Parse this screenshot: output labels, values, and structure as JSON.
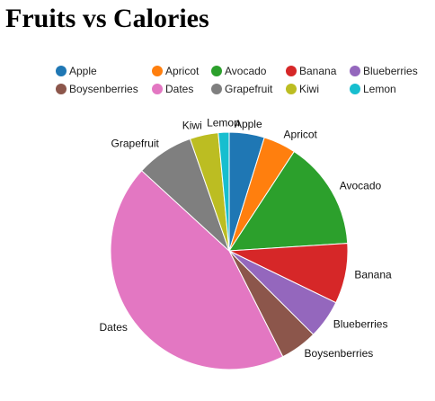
{
  "title": "Fruits vs Calories",
  "chart_data": {
    "type": "pie",
    "title": "Fruits vs Calories",
    "legend_placement": "top",
    "categories": [
      "Apple",
      "Apricot",
      "Avocado",
      "Banana",
      "Blueberries",
      "Boysenberries",
      "Dates",
      "Grapefruit",
      "Kiwi",
      "Lemon"
    ],
    "values": [
      52,
      48,
      160,
      89,
      57,
      55,
      480,
      85,
      42,
      16
    ],
    "colors": [
      "#1f77b4",
      "#ff7f0e",
      "#2ca02c",
      "#d62728",
      "#9467bd",
      "#8c564b",
      "#e377c2",
      "#7f7f7f",
      "#bcbd22",
      "#17becf"
    ]
  }
}
